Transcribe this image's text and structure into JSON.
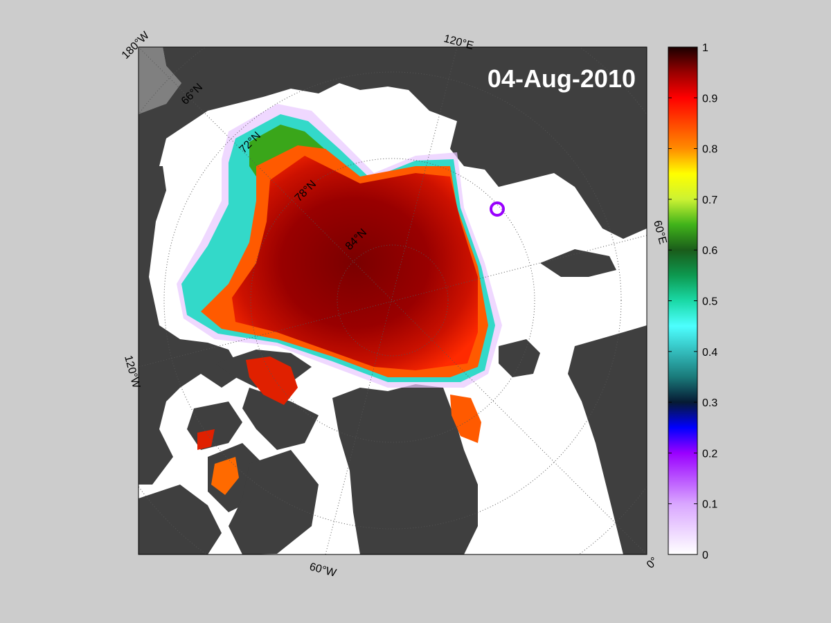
{
  "map": {
    "date_label": "04-Aug-2010",
    "coordinate_labels": {
      "lon_180w": "180°W",
      "lon_120e": "120°E",
      "lon_60e": "60°E",
      "lon_120w": "120°W",
      "lon_60w": "60°W",
      "lon_0": "0°",
      "lat_66n": "66°N",
      "lat_72n": "72°N",
      "lat_78n": "78°N",
      "lat_84n": "84°N"
    },
    "colors": {
      "land": "#3f3f3f",
      "ocean_ice_free": "#ffffff",
      "outer_bg": "#cccccc",
      "outside_grid": "#808080",
      "grid_line": "#555555"
    }
  },
  "colorbar": {
    "min": 0,
    "max": 1,
    "ticks": [
      "0",
      "0.1",
      "0.2",
      "0.3",
      "0.4",
      "0.5",
      "0.6",
      "0.7",
      "0.8",
      "0.9",
      "1"
    ],
    "stops": [
      {
        "value": 0.0,
        "color": "#ffffff"
      },
      {
        "value": 0.1,
        "color": "#d9a6ff"
      },
      {
        "value": 0.2,
        "color": "#9900ff"
      },
      {
        "value": 0.25,
        "color": "#0000ff"
      },
      {
        "value": 0.3,
        "color": "#061a33"
      },
      {
        "value": 0.35,
        "color": "#1a7a7a"
      },
      {
        "value": 0.45,
        "color": "#4dffff"
      },
      {
        "value": 0.5,
        "color": "#1ad9a6"
      },
      {
        "value": 0.55,
        "color": "#0d9950"
      },
      {
        "value": 0.6,
        "color": "#1a5c1a"
      },
      {
        "value": 0.65,
        "color": "#40b31a"
      },
      {
        "value": 0.7,
        "color": "#ccf233"
      },
      {
        "value": 0.75,
        "color": "#ffff00"
      },
      {
        "value": 0.8,
        "color": "#ff8c00"
      },
      {
        "value": 0.9,
        "color": "#ff0000"
      },
      {
        "value": 0.95,
        "color": "#990000"
      },
      {
        "value": 1.0,
        "color": "#1a0000"
      }
    ]
  }
}
